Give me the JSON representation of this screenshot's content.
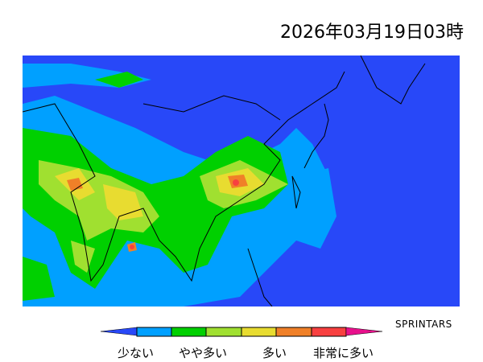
{
  "title": "2026年03月19日03時",
  "credit": "SPRINTARS",
  "legend": {
    "labels": [
      "少ない",
      "やや多い",
      "多い",
      "非常に多い"
    ],
    "colors": [
      "#2848f8",
      "#00a0ff",
      "#00d000",
      "#a0e030",
      "#e8dc30",
      "#f08028",
      "#f84040",
      "#e8108c"
    ]
  },
  "map": {
    "background_color": "#2848f8"
  }
}
